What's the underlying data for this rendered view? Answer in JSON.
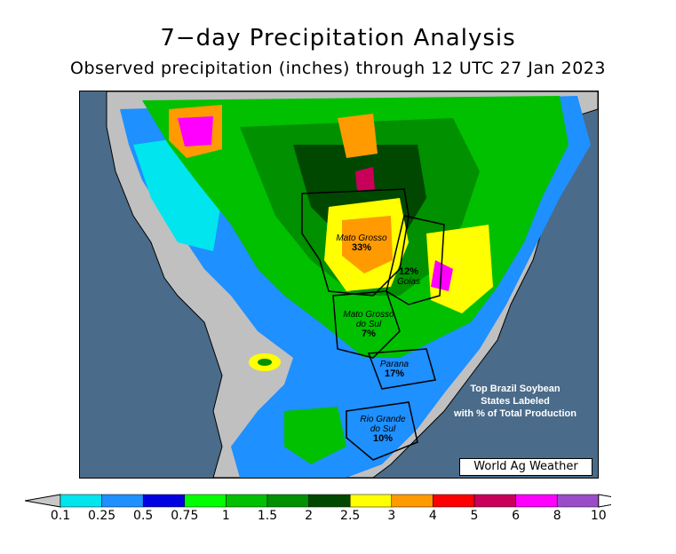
{
  "title": "7−day Precipitation Analysis",
  "subtitle": "Observed precipitation (inches) through 12 UTC 27 Jan 2023",
  "states": [
    {
      "name": "Mato Grosso",
      "pct": "33%"
    },
    {
      "name": "Goias",
      "pct": "12%"
    },
    {
      "name": "Mato Grosso do Sul",
      "name_line1": "Mato Grosso",
      "name_line2": "do Sul",
      "pct": "7%"
    },
    {
      "name": "Parana",
      "pct": "17%"
    },
    {
      "name": "Rio Grande do Sul",
      "name_line1": "Rio Grande",
      "name_line2": "do Sul",
      "pct": "10%"
    }
  ],
  "note": {
    "line1": "Top Brazil Soybean",
    "line2": "States Labeled",
    "line3": "with % of Total Production"
  },
  "credit": "World Ag Weather",
  "legend": {
    "unit": "inches",
    "ticks": [
      "0.1",
      "0.25",
      "0.5",
      "0.75",
      "1",
      "1.5",
      "2",
      "2.5",
      "3",
      "4",
      "5",
      "6",
      "8",
      "10"
    ],
    "colors": [
      "#00e5ee",
      "#1e90ff",
      "#0000e0",
      "#00ff00",
      "#00c000",
      "#009000",
      "#004800",
      "#ffff00",
      "#ff9a00",
      "#ff0000",
      "#c8005a",
      "#ff00ff",
      "#9a4dc8"
    ],
    "below_color": "#c8c8c8",
    "above_color": "#ffffff"
  }
}
